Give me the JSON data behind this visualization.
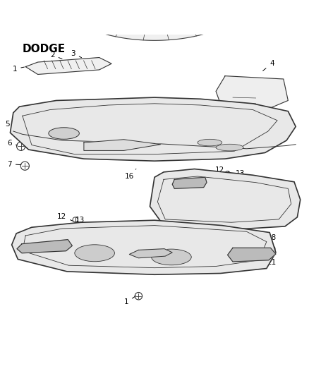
{
  "title": "DODGE",
  "background_color": "#ffffff",
  "line_color": "#333333",
  "label_color": "#000000",
  "figsize": [
    4.38,
    5.33
  ],
  "dpi": 100
}
